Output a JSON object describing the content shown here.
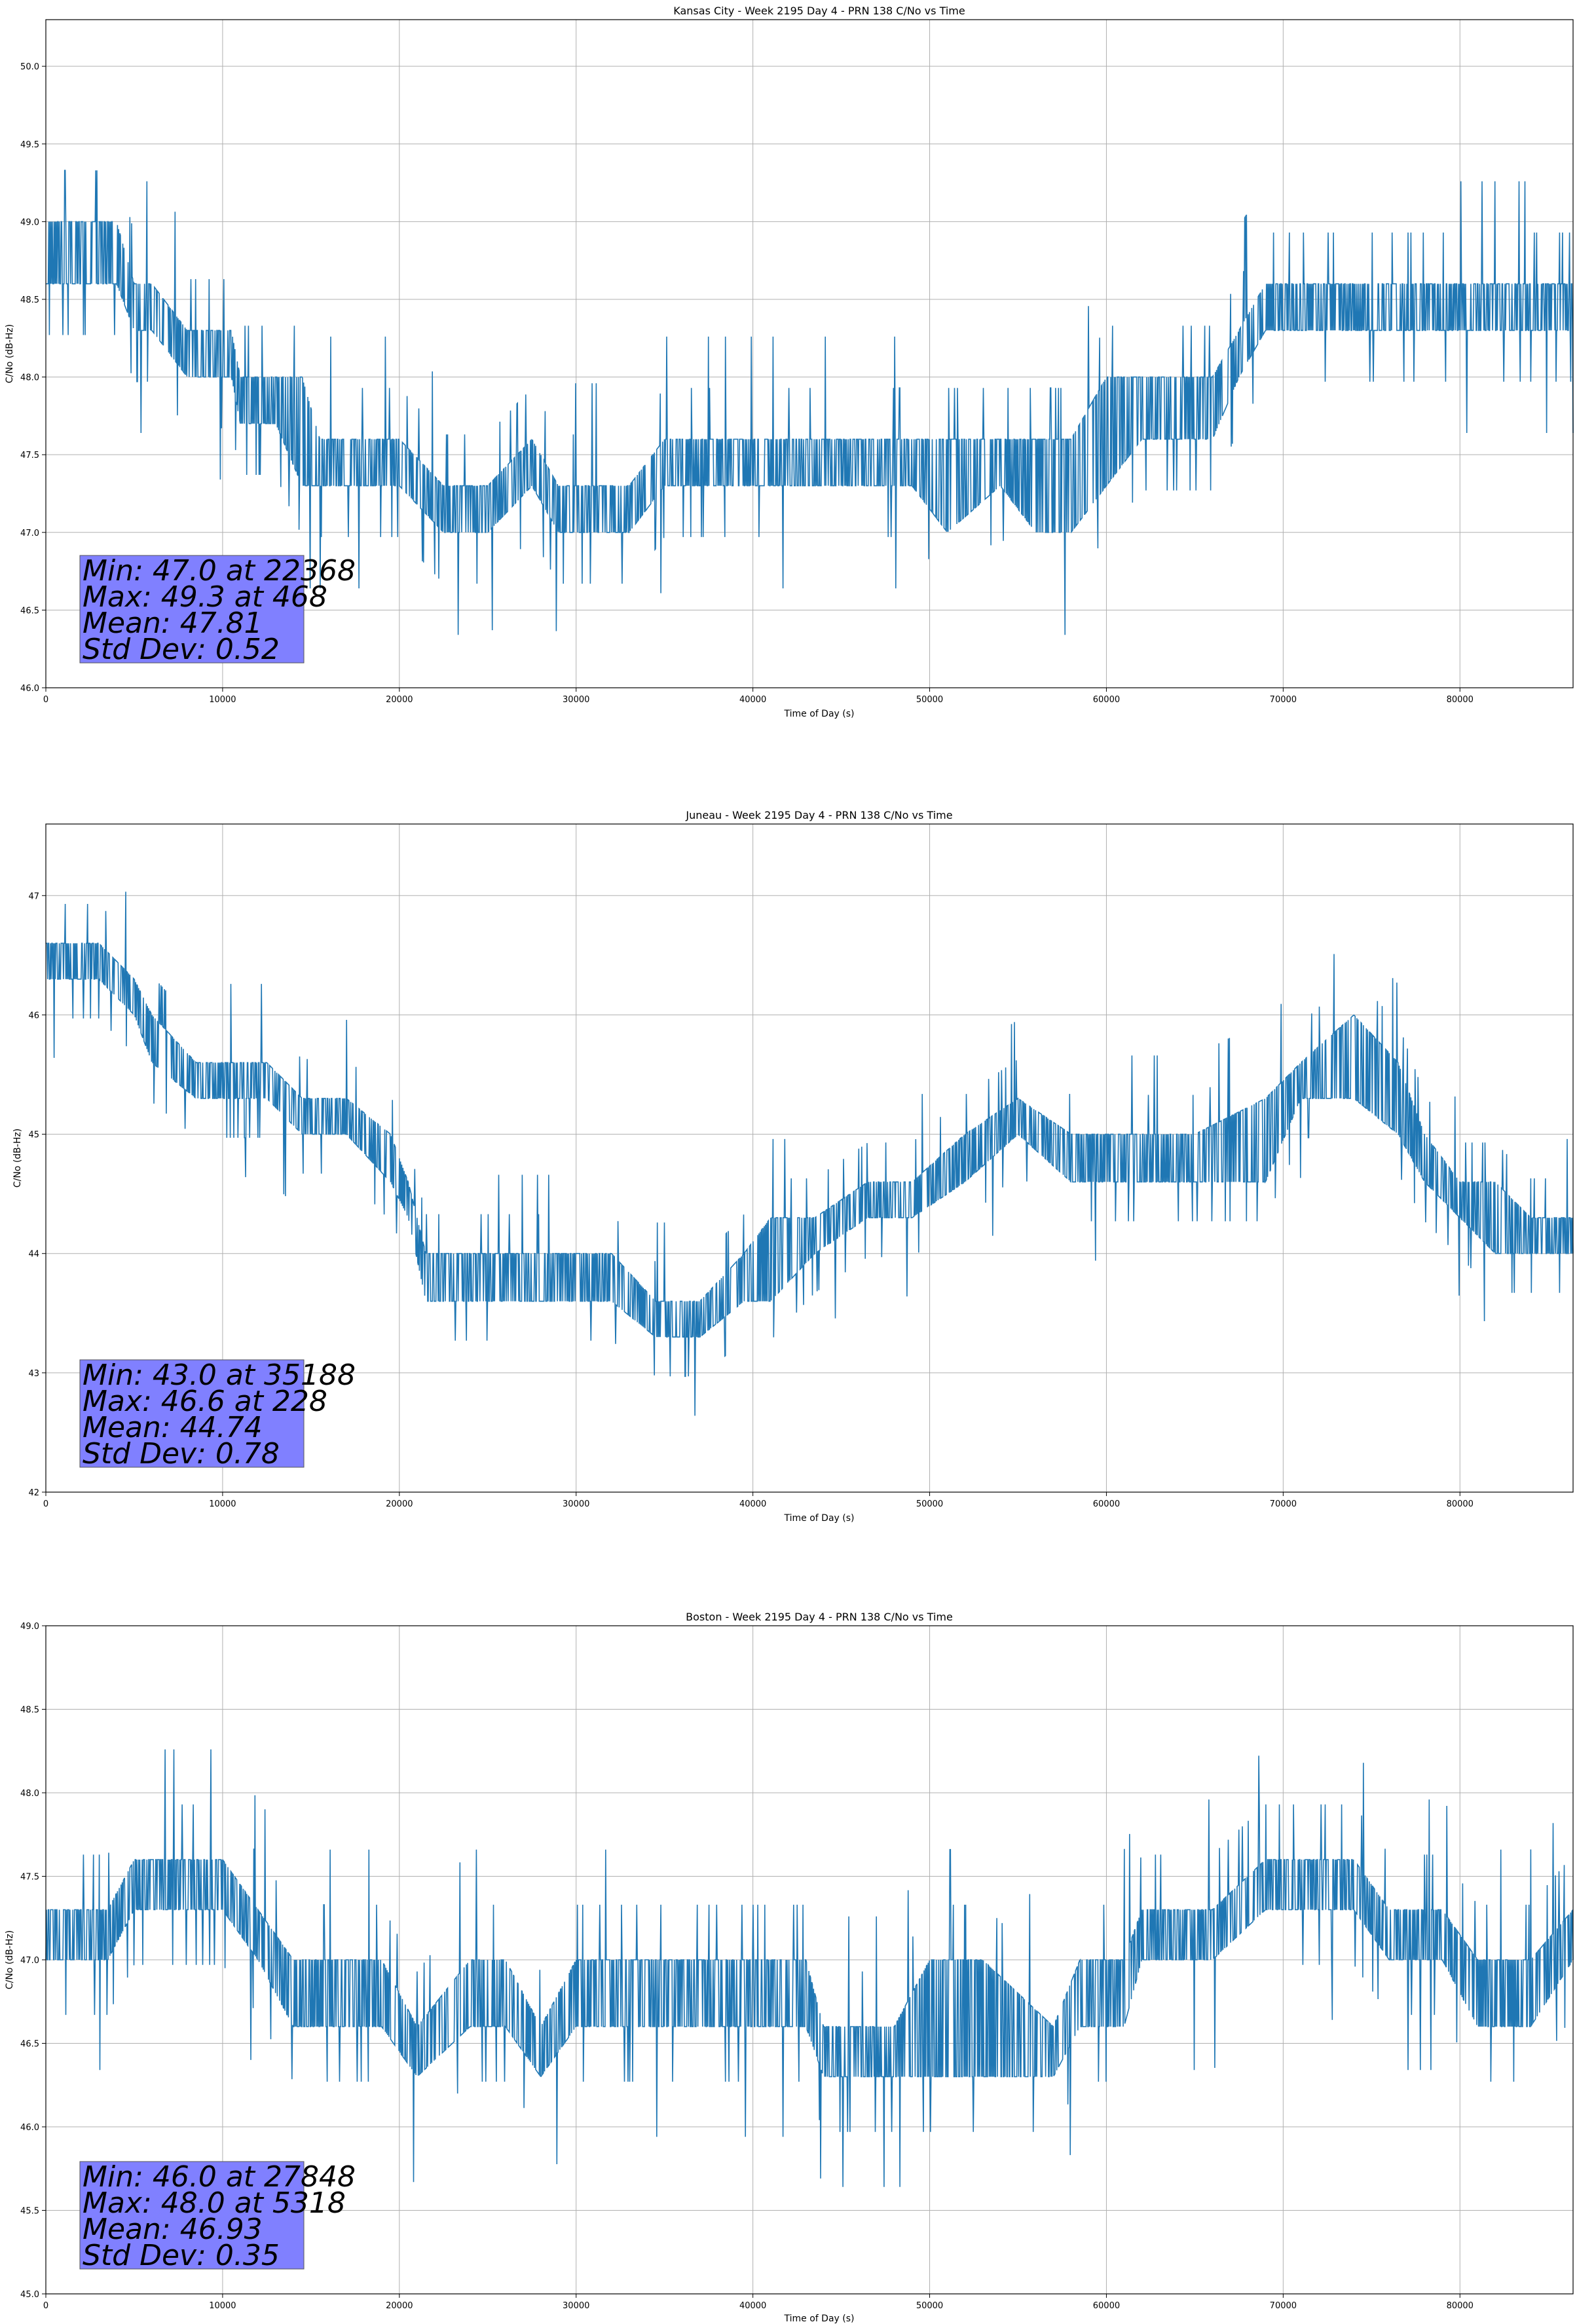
{
  "colors": {
    "line": "#1f77b4",
    "grid": "#b0b0b0",
    "stats_box": "#8080ff"
  },
  "chart_data": [
    {
      "type": "line",
      "title": "Kansas City - Week 2195 Day 4 - PRN 138 C/No vs Time",
      "xlabel": "Time of Day (s)",
      "ylabel": "C/No (dB-Hz)",
      "xlim": [
        0,
        86400
      ],
      "ylim": [
        46.0,
        50.3
      ],
      "xticks": [
        0,
        10000,
        20000,
        30000,
        40000,
        50000,
        60000,
        70000,
        80000
      ],
      "xtick_labels": [
        "0",
        "10000",
        "20000",
        "30000",
        "40000",
        "50000",
        "60000",
        "70000",
        "80000"
      ],
      "yticks": [
        46.0,
        46.5,
        47.0,
        47.5,
        48.0,
        48.5,
        49.0,
        49.5,
        50.0
      ],
      "ytick_labels": [
        "46.0",
        "46.5",
        "47.0",
        "47.5",
        "48.0",
        "48.5",
        "49.0",
        "49.5",
        "50.0"
      ],
      "grid": true,
      "stats": [
        "Min: 47.0 at 22368",
        "Max: 49.3 at 468",
        "Mean: 47.81",
        "Std Dev: 0.52"
      ],
      "series": [
        {
          "name": "C/No",
          "envelope": {
            "x": [
              0,
              2000,
              4000,
              5000,
              6000,
              8000,
              9500,
              10500,
              11000,
              13000,
              14500,
              15500,
              17000,
              20000,
              22500,
              25000,
              27500,
              29000,
              31000,
              33000,
              35000,
              38000,
              42000,
              46000,
              49000,
              51000,
              54000,
              56000,
              58000,
              60000,
              62000,
              64000,
              66000,
              67500,
              69000,
              72000,
              76000,
              80000,
              84000,
              86400
            ],
            "low": [
              48.6,
              48.6,
              48.6,
              48.3,
              48.3,
              48.0,
              48.0,
              48.0,
              47.7,
              47.7,
              47.3,
              47.3,
              47.3,
              47.3,
              47.0,
              47.0,
              47.3,
              47.0,
              47.0,
              47.0,
              47.3,
              47.3,
              47.3,
              47.3,
              47.3,
              47.0,
              47.3,
              47.0,
              47.0,
              47.3,
              47.6,
              47.6,
              47.6,
              48.0,
              48.3,
              48.3,
              48.3,
              48.3,
              48.3,
              48.3
            ],
            "high": [
              49.0,
              49.0,
              49.0,
              48.6,
              48.6,
              48.3,
              48.3,
              48.3,
              48.0,
              48.0,
              48.0,
              47.6,
              47.6,
              47.6,
              47.3,
              47.3,
              47.6,
              47.3,
              47.3,
              47.3,
              47.6,
              47.6,
              47.6,
              47.6,
              47.6,
              47.6,
              47.6,
              47.6,
              47.6,
              48.0,
              48.0,
              48.0,
              48.0,
              48.3,
              48.6,
              48.6,
              48.6,
              48.6,
              48.6,
              48.6
            ]
          }
        }
      ]
    },
    {
      "type": "line",
      "title": "Juneau - Week 2195 Day 4 - PRN 138 C/No vs Time",
      "xlabel": "Time of Day (s)",
      "ylabel": "C/No (dB-Hz)",
      "xlim": [
        0,
        86400
      ],
      "ylim": [
        42.0,
        47.6
      ],
      "xticks": [
        0,
        10000,
        20000,
        30000,
        40000,
        50000,
        60000,
        70000,
        80000
      ],
      "xtick_labels": [
        "0",
        "10000",
        "20000",
        "30000",
        "40000",
        "50000",
        "60000",
        "70000",
        "80000"
      ],
      "yticks": [
        42,
        43,
        44,
        45,
        46,
        47
      ],
      "ytick_labels": [
        "42",
        "43",
        "44",
        "45",
        "46",
        "47"
      ],
      "grid": true,
      "stats": [
        "Min: 43.0 at 35188",
        "Max: 46.6 at 228",
        "Mean: 44.74",
        "Std Dev: 0.78"
      ],
      "series": [
        {
          "name": "C/No",
          "envelope": {
            "x": [
              0,
              3000,
              5000,
              6000,
              8500,
              9500,
              12500,
              14500,
              17000,
              19500,
              20500,
              21500,
              25000,
              29000,
              32000,
              34500,
              37000,
              39500,
              41000,
              43500,
              46500,
              49000,
              52000,
              55000,
              58000,
              61000,
              65000,
              69000,
              71000,
              74000,
              76500,
              78000,
              80000,
              82000,
              84000,
              86400
            ],
            "low": [
              46.3,
              46.3,
              46.0,
              45.6,
              45.3,
              45.3,
              45.3,
              45.0,
              45.0,
              44.6,
              44.3,
              43.6,
              43.6,
              43.6,
              43.6,
              43.3,
              43.3,
              43.6,
              43.6,
              44.0,
              44.3,
              44.3,
              44.6,
              45.0,
              44.6,
              44.6,
              44.6,
              44.6,
              45.3,
              45.3,
              45.0,
              44.6,
              44.3,
              44.0,
              44.0,
              44.0
            ],
            "high": [
              46.6,
              46.6,
              46.3,
              46.0,
              45.6,
              45.6,
              45.6,
              45.3,
              45.3,
              45.0,
              44.6,
              44.0,
              44.0,
              44.0,
              44.0,
              43.6,
              43.6,
              44.0,
              44.3,
              44.3,
              44.6,
              44.6,
              45.0,
              45.3,
              45.0,
              45.0,
              45.0,
              45.3,
              45.6,
              46.0,
              45.6,
              45.0,
              44.6,
              44.6,
              44.3,
              44.3
            ]
          }
        }
      ]
    },
    {
      "type": "line",
      "title": "Boston - Week 2195 Day 4 - PRN 138 C/No vs Time",
      "xlabel": "Time of Day (s)",
      "ylabel": "C/No (dB-Hz)",
      "xlim": [
        0,
        86400
      ],
      "ylim": [
        45.0,
        49.0
      ],
      "xticks": [
        0,
        10000,
        20000,
        30000,
        40000,
        50000,
        60000,
        70000,
        80000
      ],
      "xtick_labels": [
        "0",
        "10000",
        "20000",
        "30000",
        "40000",
        "50000",
        "60000",
        "70000",
        "80000"
      ],
      "yticks": [
        45.0,
        45.5,
        46.0,
        46.5,
        47.0,
        47.5,
        48.0,
        48.5,
        49.0
      ],
      "ytick_labels": [
        "45.0",
        "45.5",
        "46.0",
        "46.5",
        "47.0",
        "47.5",
        "48.0",
        "48.5",
        "49.0"
      ],
      "grid": true,
      "stats": [
        "Min: 46.0 at 27848",
        "Max: 48.0 at 5318",
        "Mean: 46.93",
        "Std Dev: 0.35"
      ],
      "series": [
        {
          "name": "C/No",
          "envelope": {
            "x": [
              0,
              3500,
              5000,
              8000,
              10000,
              12000,
              14000,
              17000,
              19000,
              21000,
              24000,
              26000,
              28000,
              30000,
              34000,
              38000,
              43000,
              44000,
              48000,
              50000,
              53000,
              57000,
              58500,
              61000,
              62000,
              66000,
              69000,
              74000,
              76000,
              79000,
              81000,
              84000,
              86400
            ],
            "low": [
              47.0,
              47.0,
              47.3,
              47.3,
              47.3,
              47.0,
              46.6,
              46.6,
              46.6,
              46.3,
              46.6,
              46.6,
              46.3,
              46.6,
              46.6,
              46.6,
              46.6,
              46.3,
              46.3,
              46.3,
              46.3,
              46.3,
              46.6,
              46.6,
              47.0,
              47.0,
              47.3,
              47.3,
              47.0,
              47.0,
              46.6,
              46.6,
              47.0
            ],
            "high": [
              47.3,
              47.3,
              47.6,
              47.6,
              47.6,
              47.3,
              47.0,
              47.0,
              47.0,
              46.6,
              47.0,
              47.0,
              46.6,
              47.0,
              47.0,
              47.0,
              47.0,
              46.6,
              46.6,
              47.0,
              47.0,
              46.6,
              47.0,
              47.0,
              47.3,
              47.3,
              47.6,
              47.6,
              47.3,
              47.3,
              47.0,
              47.0,
              47.3
            ]
          }
        }
      ]
    }
  ]
}
